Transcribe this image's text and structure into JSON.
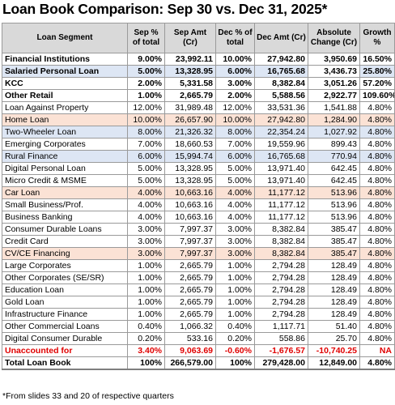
{
  "title": "Loan Book Comparison: Sep 30 vs. Dec 31, 2025*",
  "footnote": "*From slides 33 and 20 of respective quarters",
  "headers": [
    "Loan Segment",
    "Sep % of total",
    "Sep Amt (Cr)",
    "Dec % of total",
    "Dec Amt (Cr)",
    "Absolute Change (Cr)",
    "Growth %"
  ],
  "rows": [
    {
      "segment": "Financial Institutions",
      "sep_pct": "9.00%",
      "sep_amt": "23,992.11",
      "dec_pct": "10.00%",
      "dec_amt": "27,942.80",
      "abs_change": "3,950.69",
      "growth": "16.50%",
      "style": "bold",
      "blue_cols": []
    },
    {
      "segment": "Salaried Personal Loan",
      "sep_pct": "5.00%",
      "sep_amt": "13,328.95",
      "dec_pct": "6.00%",
      "dec_amt": "16,765.68",
      "abs_change": "3,436.73",
      "growth": "25.80%",
      "style": "bold",
      "blue_cols": [
        "seg",
        "sep_pct",
        "sep_amt",
        "dec_pct",
        "dec_amt",
        "growth"
      ]
    },
    {
      "segment": "KCC",
      "sep_pct": "2.00%",
      "sep_amt": "5,331.58",
      "dec_pct": "3.00%",
      "dec_amt": "8,382.84",
      "abs_change": "3,051.26",
      "growth": "57.20%",
      "style": "bold",
      "blue_cols": []
    },
    {
      "segment": "Other Retail",
      "sep_pct": "1.00%",
      "sep_amt": "2,665.79",
      "dec_pct": "2.00%",
      "dec_amt": "5,588.56",
      "abs_change": "2,922.77",
      "growth": "109.60%",
      "style": "bold",
      "blue_cols": []
    },
    {
      "segment": "Loan Against Property",
      "sep_pct": "12.00%",
      "sep_amt": "31,989.48",
      "dec_pct": "12.00%",
      "dec_amt": "33,531.36",
      "abs_change": "1,541.88",
      "growth": "4.80%",
      "style": "",
      "blue_cols": []
    },
    {
      "segment": "Home Loan",
      "sep_pct": "10.00%",
      "sep_amt": "26,657.90",
      "dec_pct": "10.00%",
      "dec_amt": "27,942.80",
      "abs_change": "1,284.90",
      "growth": "4.80%",
      "style": "peach",
      "blue_cols": []
    },
    {
      "segment": "Two-Wheeler Loan",
      "sep_pct": "8.00%",
      "sep_amt": "21,326.32",
      "dec_pct": "8.00%",
      "dec_amt": "22,354.24",
      "abs_change": "1,027.92",
      "growth": "4.80%",
      "style": "blue",
      "blue_cols": []
    },
    {
      "segment": "Emerging Corporates",
      "sep_pct": "7.00%",
      "sep_amt": "18,660.53",
      "dec_pct": "7.00%",
      "dec_amt": "19,559.96",
      "abs_change": "899.43",
      "growth": "4.80%",
      "style": "",
      "blue_cols": []
    },
    {
      "segment": "Rural Finance",
      "sep_pct": "6.00%",
      "sep_amt": "15,994.74",
      "dec_pct": "6.00%",
      "dec_amt": "16,765.68",
      "abs_change": "770.94",
      "growth": "4.80%",
      "style": "blue",
      "blue_cols": []
    },
    {
      "segment": "Digital Personal Loan",
      "sep_pct": "5.00%",
      "sep_amt": "13,328.95",
      "dec_pct": "5.00%",
      "dec_amt": "13,971.40",
      "abs_change": "642.45",
      "growth": "4.80%",
      "style": "",
      "blue_cols": []
    },
    {
      "segment": "Micro Credit & MSME",
      "sep_pct": "5.00%",
      "sep_amt": "13,328.95",
      "dec_pct": "5.00%",
      "dec_amt": "13,971.40",
      "abs_change": "642.45",
      "growth": "4.80%",
      "style": "",
      "blue_cols": []
    },
    {
      "segment": "Car Loan",
      "sep_pct": "4.00%",
      "sep_amt": "10,663.16",
      "dec_pct": "4.00%",
      "dec_amt": "11,177.12",
      "abs_change": "513.96",
      "growth": "4.80%",
      "style": "peach",
      "blue_cols": []
    },
    {
      "segment": "Small Business/Prof.",
      "sep_pct": "4.00%",
      "sep_amt": "10,663.16",
      "dec_pct": "4.00%",
      "dec_amt": "11,177.12",
      "abs_change": "513.96",
      "growth": "4.80%",
      "style": "",
      "blue_cols": []
    },
    {
      "segment": "Business Banking",
      "sep_pct": "4.00%",
      "sep_amt": "10,663.16",
      "dec_pct": "4.00%",
      "dec_amt": "11,177.12",
      "abs_change": "513.96",
      "growth": "4.80%",
      "style": "",
      "blue_cols": []
    },
    {
      "segment": "Consumer Durable Loans",
      "sep_pct": "3.00%",
      "sep_amt": "7,997.37",
      "dec_pct": "3.00%",
      "dec_amt": "8,382.84",
      "abs_change": "385.47",
      "growth": "4.80%",
      "style": "",
      "blue_cols": []
    },
    {
      "segment": "Credit Card",
      "sep_pct": "3.00%",
      "sep_amt": "7,997.37",
      "dec_pct": "3.00%",
      "dec_amt": "8,382.84",
      "abs_change": "385.47",
      "growth": "4.80%",
      "style": "",
      "blue_cols": []
    },
    {
      "segment": "CV/CE Financing",
      "sep_pct": "3.00%",
      "sep_amt": "7,997.37",
      "dec_pct": "3.00%",
      "dec_amt": "8,382.84",
      "abs_change": "385.47",
      "growth": "4.80%",
      "style": "peach",
      "blue_cols": []
    },
    {
      "segment": "Large Corporates",
      "sep_pct": "1.00%",
      "sep_amt": "2,665.79",
      "dec_pct": "1.00%",
      "dec_amt": "2,794.28",
      "abs_change": "128.49",
      "growth": "4.80%",
      "style": "",
      "blue_cols": []
    },
    {
      "segment": "Other Corporates (SE/SR)",
      "sep_pct": "1.00%",
      "sep_amt": "2,665.79",
      "dec_pct": "1.00%",
      "dec_amt": "2,794.28",
      "abs_change": "128.49",
      "growth": "4.80%",
      "style": "",
      "blue_cols": []
    },
    {
      "segment": "Education Loan",
      "sep_pct": "1.00%",
      "sep_amt": "2,665.79",
      "dec_pct": "1.00%",
      "dec_amt": "2,794.28",
      "abs_change": "128.49",
      "growth": "4.80%",
      "style": "",
      "blue_cols": []
    },
    {
      "segment": "Gold Loan",
      "sep_pct": "1.00%",
      "sep_amt": "2,665.79",
      "dec_pct": "1.00%",
      "dec_amt": "2,794.28",
      "abs_change": "128.49",
      "growth": "4.80%",
      "style": "",
      "blue_cols": []
    },
    {
      "segment": "Infrastructure Finance",
      "sep_pct": "1.00%",
      "sep_amt": "2,665.79",
      "dec_pct": "1.00%",
      "dec_amt": "2,794.28",
      "abs_change": "128.49",
      "growth": "4.80%",
      "style": "",
      "blue_cols": []
    },
    {
      "segment": "Other Commercial Loans",
      "sep_pct": "0.40%",
      "sep_amt": "1,066.32",
      "dec_pct": "0.40%",
      "dec_amt": "1,117.71",
      "abs_change": "51.40",
      "growth": "4.80%",
      "style": "",
      "blue_cols": []
    },
    {
      "segment": "Digital Consumer Durable",
      "sep_pct": "0.20%",
      "sep_amt": "533.16",
      "dec_pct": "0.20%",
      "dec_amt": "558.86",
      "abs_change": "25.70",
      "growth": "4.80%",
      "style": "",
      "blue_cols": []
    },
    {
      "segment": "Unaccounted for",
      "sep_pct": "3.40%",
      "sep_amt": "9,063.69",
      "dec_pct": "-0.60%",
      "dec_amt": "-1,676.57",
      "abs_change": "-10,740.25",
      "growth": "NA",
      "style": "unacc",
      "blue_cols": []
    },
    {
      "segment": "Total Loan Book",
      "sep_pct": "100%",
      "sep_amt": "266,579.00",
      "dec_pct": "100%",
      "dec_amt": "279,428.00",
      "abs_change": "12,849.00",
      "growth": "4.80%",
      "style": "total",
      "blue_cols": []
    }
  ],
  "colors": {
    "header_bg": "#d9d9d9",
    "blue_highlight": "#dde6f4",
    "peach_highlight": "#fbe2d5",
    "unaccounted_text": "#e00000"
  }
}
